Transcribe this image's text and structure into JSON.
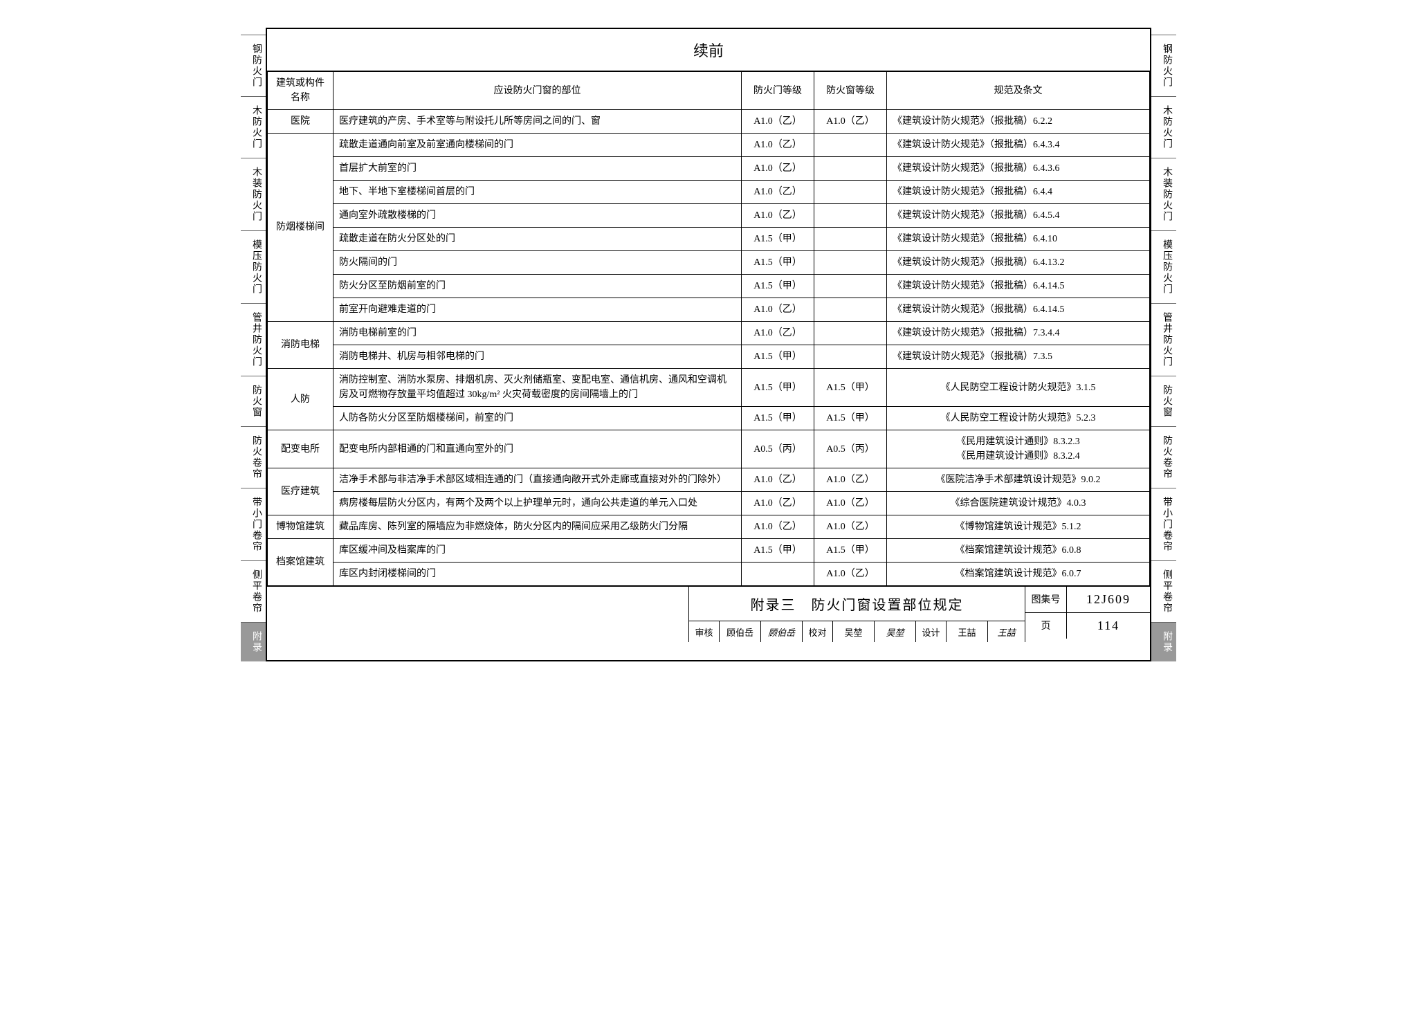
{
  "side_tabs": [
    {
      "label": "钢防火门",
      "active": false
    },
    {
      "label": "木防火门",
      "active": false
    },
    {
      "label": "木装防火门",
      "active": false
    },
    {
      "label": "模压防火门",
      "active": false
    },
    {
      "label": "管井防火门",
      "active": false
    },
    {
      "label": "防火窗",
      "active": false
    },
    {
      "label": "防火卷帘",
      "active": false
    },
    {
      "label": "带小门卷帘",
      "active": false
    },
    {
      "label": "侧平卷帘",
      "active": false
    },
    {
      "label": "附录",
      "active": true
    }
  ],
  "title": "续前",
  "headers": {
    "col1": "建筑或构件名称",
    "col2": "应设防火门窗的部位",
    "col3": "防火门等级",
    "col4": "防火窗等级",
    "col5": "规范及条文"
  },
  "rows": [
    {
      "cat": "医院",
      "cat_rowspan": 1,
      "loc": "医疗建筑的产房、手术室等与附设托儿所等房间之间的门、窗",
      "g1": "A1.0（乙）",
      "g2": "A1.0（乙）",
      "ref": "《建筑设计防火规范》（报批稿）6.2.2",
      "ref_align": "left"
    },
    {
      "cat": "防烟楼梯间",
      "cat_rowspan": 8,
      "loc": "疏散走道通向前室及前室通向楼梯间的门",
      "g1": "A1.0（乙）",
      "g2": "",
      "ref": "《建筑设计防火规范》（报批稿）6.4.3.4",
      "ref_align": "left"
    },
    {
      "loc": "首层扩大前室的门",
      "g1": "A1.0（乙）",
      "g2": "",
      "ref": "《建筑设计防火规范》（报批稿）6.4.3.6",
      "ref_align": "left"
    },
    {
      "loc": "地下、半地下室楼梯间首层的门",
      "g1": "A1.0（乙）",
      "g2": "",
      "ref": "《建筑设计防火规范》（报批稿）6.4.4",
      "ref_align": "left"
    },
    {
      "loc": "通向室外疏散楼梯的门",
      "g1": "A1.0（乙）",
      "g2": "",
      "ref": "《建筑设计防火规范》（报批稿）6.4.5.4",
      "ref_align": "left"
    },
    {
      "loc": "疏散走道在防火分区处的门",
      "g1": "A1.5（甲）",
      "g2": "",
      "ref": "《建筑设计防火规范》（报批稿）6.4.10",
      "ref_align": "left"
    },
    {
      "loc": "防火隔间的门",
      "g1": "A1.5（甲）",
      "g2": "",
      "ref": "《建筑设计防火规范》（报批稿）6.4.13.2",
      "ref_align": "left"
    },
    {
      "loc": "防火分区至防烟前室的门",
      "g1": "A1.5（甲）",
      "g2": "",
      "ref": "《建筑设计防火规范》（报批稿）6.4.14.5",
      "ref_align": "left"
    },
    {
      "loc": "前室开向避难走道的门",
      "g1": "A1.0（乙）",
      "g2": "",
      "ref": "《建筑设计防火规范》（报批稿）6.4.14.5",
      "ref_align": "left"
    },
    {
      "cat": "消防电梯",
      "cat_rowspan": 2,
      "loc": "消防电梯前室的门",
      "g1": "A1.0（乙）",
      "g2": "",
      "ref": "《建筑设计防火规范》（报批稿）7.3.4.4",
      "ref_align": "left"
    },
    {
      "loc": "消防电梯井、机房与相邻电梯的门",
      "g1": "A1.5（甲）",
      "g2": "",
      "ref": "《建筑设计防火规范》（报批稿）7.3.5",
      "ref_align": "left"
    },
    {
      "cat": "人防",
      "cat_rowspan": 2,
      "loc": "消防控制室、消防水泵房、排烟机房、灭火剂储瓶室、变配电室、通信机房、通风和空调机房及可燃物存放量平均值超过 30kg/m² 火灾荷载密度的房间隔墙上的门",
      "g1": "A1.5（甲）",
      "g2": "A1.5（甲）",
      "ref": "《人民防空工程设计防火规范》3.1.5",
      "ref_align": "center"
    },
    {
      "loc": "人防各防火分区至防烟楼梯间，前室的门",
      "g1": "A1.5（甲）",
      "g2": "A1.5（甲）",
      "ref": "《人民防空工程设计防火规范》5.2.3",
      "ref_align": "center"
    },
    {
      "cat": "配变电所",
      "cat_rowspan": 1,
      "loc": "配变电所内部相通的门和直通向室外的门",
      "g1": "A0.5（丙）",
      "g2": "A0.5（丙）",
      "ref": "《民用建筑设计通则》8.3.2.3\n《民用建筑设计通则》8.3.2.4",
      "ref_align": "center"
    },
    {
      "cat": "医疗建筑",
      "cat_rowspan": 2,
      "loc": "洁净手术部与非洁净手术部区域相连通的门（直接通向敞开式外走廊或直接对外的门除外）",
      "g1": "A1.0（乙）",
      "g2": "A1.0（乙）",
      "ref": "《医院洁净手术部建筑设计规范》9.0.2",
      "ref_align": "center"
    },
    {
      "loc": "病房楼每层防火分区内，有两个及两个以上护理单元时，通向公共走道的单元入口处",
      "g1": "A1.0（乙）",
      "g2": "A1.0（乙）",
      "ref": "《综合医院建筑设计规范》4.0.3",
      "ref_align": "center"
    },
    {
      "cat": "博物馆建筑",
      "cat_rowspan": 1,
      "loc": "藏品库房、陈列室的隔墙应为非燃烧体，防火分区内的隔间应采用乙级防火门分隔",
      "g1": "A1.0（乙）",
      "g2": "A1.0（乙）",
      "ref": "《博物馆建筑设计规范》5.1.2",
      "ref_align": "center"
    },
    {
      "cat": "档案馆建筑",
      "cat_rowspan": 2,
      "loc": "库区缓冲间及档案库的门",
      "g1": "A1.5（甲）",
      "g2": "A1.5（甲）",
      "ref": "《档案馆建筑设计规范》6.0.8",
      "ref_align": "center"
    },
    {
      "loc": "库区内封闭楼梯间的门",
      "g1": "",
      "g2": "A1.0（乙）",
      "ref": "《档案馆建筑设计规范》6.0.7",
      "ref_align": "center"
    }
  ],
  "footer": {
    "appendix_title": "附录三　防火门窗设置部位规定",
    "code_label": "图集号",
    "code_value": "12J609",
    "page_label": "页",
    "page_value": "114",
    "sign": {
      "审核": {
        "name": "顾伯岳",
        "sig": "顾伯岳"
      },
      "校对": {
        "name": "吴堃",
        "sig": "吴堃"
      },
      "设计": {
        "name": "王喆",
        "sig": "王喆"
      }
    }
  }
}
